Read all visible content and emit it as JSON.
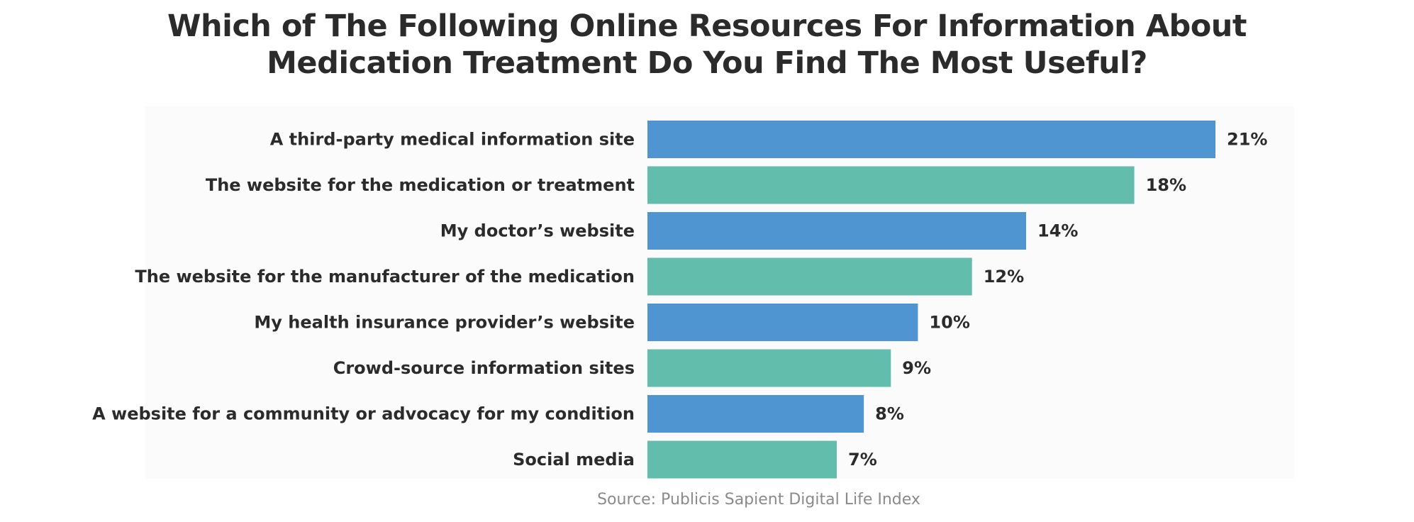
{
  "chart_data": {
    "type": "bar",
    "orientation": "horizontal",
    "title": [
      "Which of The Following Online Resources For Information About",
      "Medication Treatment Do You Find The Most Useful?"
    ],
    "categories": [
      "A third-party medical information site",
      "The website for the medication or treatment",
      "My doctor’s website",
      "The website for the manufacturer of the medication",
      "My health insurance provider’s website",
      "Crowd-source information sites",
      "A website for a community or advocacy for my condition",
      "Social media"
    ],
    "values": [
      21,
      18,
      14,
      12,
      10,
      9,
      8,
      7
    ],
    "value_labels": [
      "21%",
      "18%",
      "14%",
      "12%",
      "10%",
      "9%",
      "8%",
      "7%"
    ],
    "unit": "%",
    "xlim": [
      0,
      21
    ],
    "grid": false,
    "legend": "none",
    "colors": [
      "#4f95d2",
      "#62bdad",
      "#4f95d2",
      "#62bdad",
      "#4f95d2",
      "#62bdad",
      "#4f95d2",
      "#62bdad"
    ],
    "source": "Source: Publicis Sapient Digital Life Index"
  }
}
